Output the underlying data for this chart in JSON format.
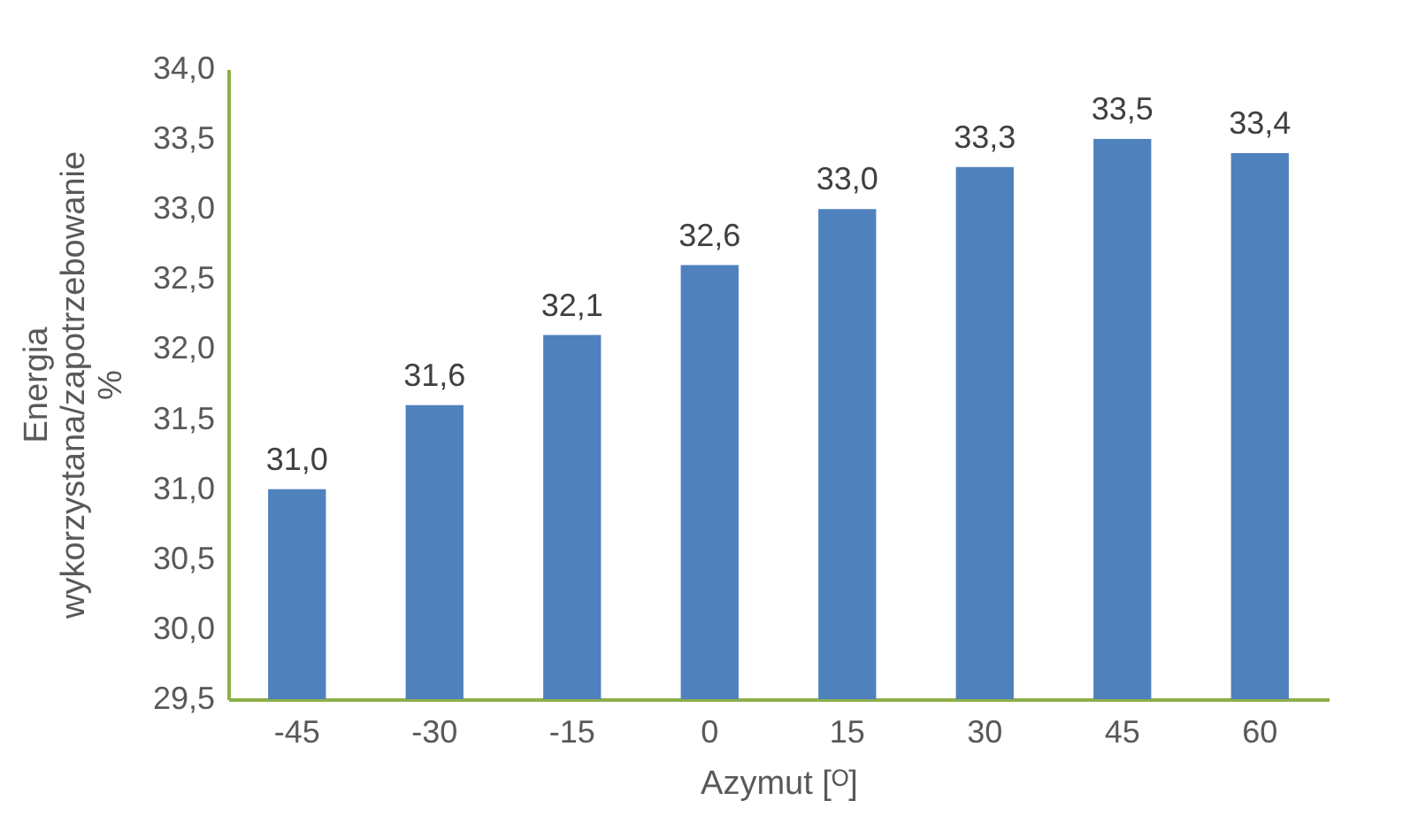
{
  "chart_data": {
    "type": "bar",
    "xlabel": "Azymut [ᴼ]",
    "ylabel": "Energia\nwykorzystana/zapotrzebowanie\n%",
    "categories": [
      "-45",
      "-30",
      "-15",
      "0",
      "15",
      "30",
      "45",
      "60"
    ],
    "values": [
      31.0,
      31.6,
      32.1,
      32.6,
      33.0,
      33.3,
      33.5,
      33.4
    ],
    "value_labels": [
      "31,0",
      "31,6",
      "32,1",
      "32,6",
      "33,0",
      "33,3",
      "33,5",
      "33,4"
    ],
    "color": "#4f81bd",
    "ylim": [
      29.5,
      34.0
    ],
    "yticks": [
      {
        "value": 29.5,
        "label": "29,5"
      },
      {
        "value": 30.0,
        "label": "30,0"
      },
      {
        "value": 30.5,
        "label": "30,5"
      },
      {
        "value": 31.0,
        "label": "31,0"
      },
      {
        "value": 31.5,
        "label": "31,5"
      },
      {
        "value": 32.0,
        "label": "32,0"
      },
      {
        "value": 32.5,
        "label": "32,5"
      },
      {
        "value": 33.0,
        "label": "33,0"
      },
      {
        "value": 33.5,
        "label": "33,5"
      },
      {
        "value": 34.0,
        "label": "34,0"
      }
    ],
    "grid": false
  }
}
